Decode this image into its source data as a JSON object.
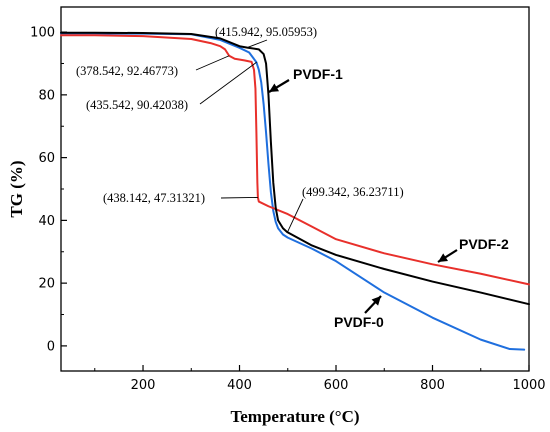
{
  "chart_data": {
    "type": "line",
    "xlabel": "Temperature (°C)",
    "ylabel": "TG (%)",
    "xlim": [
      30,
      1000
    ],
    "ylim": [
      -8,
      108
    ],
    "xticks": [
      200,
      400,
      600,
      800,
      1000
    ],
    "yticks": [
      0,
      20,
      40,
      60,
      80,
      100
    ],
    "grid": false,
    "series": [
      {
        "name": "PVDF-0",
        "color": "#1f6fde",
        "x": [
          30,
          100,
          200,
          300,
          360,
          400,
          420,
          435,
          440,
          445,
          450,
          455,
          460,
          465,
          470,
          475,
          480,
          490,
          500,
          550,
          600,
          700,
          800,
          900,
          960,
          990
        ],
        "y": [
          99.6,
          99.6,
          99.5,
          99.3,
          97.5,
          95.0,
          93.5,
          90.4,
          88.0,
          84.0,
          77.0,
          68.0,
          58.0,
          49.0,
          43.0,
          39.5,
          37.5,
          35.5,
          34.5,
          31.0,
          27.0,
          17.0,
          9.0,
          2.0,
          -1.0,
          -1.2
        ]
      },
      {
        "name": "PVDF-1",
        "color": "#000000",
        "x": [
          30,
          100,
          200,
          300,
          360,
          400,
          416,
          440,
          450,
          455,
          460,
          465,
          470,
          475,
          480,
          490,
          499,
          550,
          600,
          700,
          800,
          900,
          1000
        ],
        "y": [
          99.8,
          99.8,
          99.7,
          99.4,
          98.0,
          95.5,
          95.06,
          94.5,
          93.0,
          90.0,
          80.0,
          65.0,
          52.0,
          44.0,
          40.0,
          37.5,
          36.24,
          32.0,
          29.0,
          24.5,
          20.5,
          17.0,
          13.3
        ]
      },
      {
        "name": "PVDF-2",
        "color": "#e8302b",
        "x": [
          30,
          100,
          200,
          300,
          340,
          360,
          370,
          378.5,
          390,
          410,
          425,
          430,
          433,
          435,
          437,
          438.1,
          440,
          460,
          500,
          550,
          600,
          700,
          800,
          900,
          1000
        ],
        "y": [
          99.0,
          99.0,
          98.7,
          97.8,
          96.5,
          95.5,
          94.5,
          92.47,
          91.5,
          91.0,
          90.5,
          88.0,
          82.0,
          68.0,
          52.0,
          47.31,
          46.0,
          44.5,
          42.0,
          38.0,
          34.0,
          29.5,
          26.0,
          23.0,
          19.6
        ]
      }
    ],
    "annotations": [
      {
        "text": "(415.942, 95.05953)",
        "x": 415.942,
        "y": 95.05953
      },
      {
        "text": "(378.542, 92.46773)",
        "x": 378.542,
        "y": 92.46773
      },
      {
        "text": "(435.542, 90.42038)",
        "x": 435.542,
        "y": 90.42038
      },
      {
        "text": "(438.142, 47.31321)",
        "x": 438.142,
        "y": 47.31321
      },
      {
        "text": "(499.342, 36.23711)",
        "x": 499.342,
        "y": 36.23711
      }
    ],
    "series_labels": [
      {
        "text": "PVDF-1",
        "series": "PVDF-1",
        "x": 470,
        "y": 83
      },
      {
        "text": "PVDF-2",
        "series": "PVDF-2",
        "x": 790,
        "y": 26.5
      },
      {
        "text": "PVDF-0",
        "series": "PVDF-0",
        "x": 695,
        "y": 17
      }
    ]
  }
}
